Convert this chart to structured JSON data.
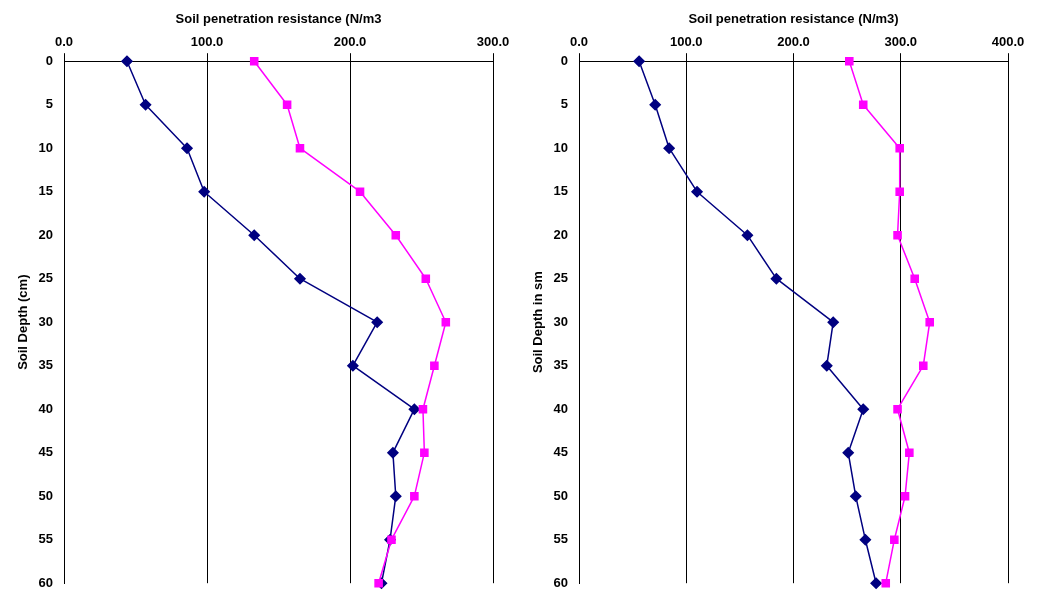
{
  "chart_data": [
    {
      "type": "line",
      "orientation": "horizontal",
      "xlabel": "Soil penetration resistance (N/m3",
      "ylabel": "Soil Depth (cm)",
      "categories": [
        "0",
        "5",
        "10",
        "15",
        "20",
        "25",
        "30",
        "35",
        "40",
        "45",
        "50",
        "55",
        "60"
      ],
      "xlim": [
        0,
        300
      ],
      "xticks": [
        {
          "value": 0,
          "label": "0.0"
        },
        {
          "value": 100,
          "label": "100.0"
        },
        {
          "value": 200,
          "label": "200.0"
        },
        {
          "value": 300,
          "label": "300.0"
        }
      ],
      "grid": "x",
      "legend": false,
      "series": [
        {
          "color": "#000080",
          "marker": "diamond",
          "values": [
            44,
            57,
            86,
            98,
            133,
            165,
            219,
            202,
            245,
            230,
            232,
            228,
            222
          ]
        },
        {
          "color": "#ff00ff",
          "marker": "square",
          "values": [
            133,
            156,
            165,
            207,
            232,
            253,
            267,
            259,
            251,
            252,
            245,
            229,
            220
          ]
        }
      ]
    },
    {
      "type": "line",
      "orientation": "horizontal",
      "xlabel": "Soil penetration resistance (N/m3)",
      "ylabel": "Soil Depth in sm",
      "categories": [
        "0",
        "5",
        "10",
        "15",
        "20",
        "25",
        "30",
        "35",
        "40",
        "45",
        "50",
        "55",
        "60"
      ],
      "xlim": [
        0,
        400
      ],
      "xticks": [
        {
          "value": 0,
          "label": "0.0"
        },
        {
          "value": 100,
          "label": "100.0"
        },
        {
          "value": 200,
          "label": "200.0"
        },
        {
          "value": 300,
          "label": "300.0"
        },
        {
          "value": 400,
          "label": "400.0"
        }
      ],
      "grid": "x",
      "legend": false,
      "series": [
        {
          "color": "#000080",
          "marker": "diamond",
          "values": [
            56,
            71,
            84,
            110,
            157,
            184,
            237,
            231,
            265,
            251,
            258,
            267,
            277
          ]
        },
        {
          "color": "#ff00ff",
          "marker": "square",
          "values": [
            252,
            265,
            299,
            299,
            297,
            313,
            327,
            321,
            297,
            308,
            304,
            294,
            286
          ]
        }
      ]
    }
  ]
}
